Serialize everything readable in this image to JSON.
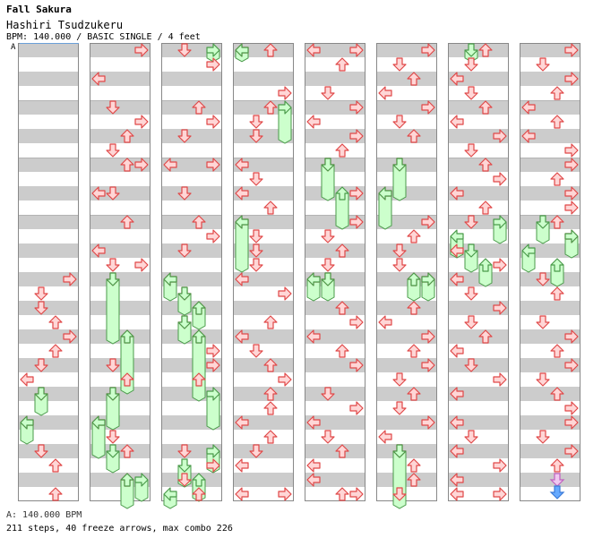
{
  "song": {
    "title": "Fall Sakura",
    "artist": "Hashiri Tsudzukeru",
    "info": "BPM: 140.000 / BASIC SINGLE / 4 feet"
  },
  "marker_label": "A",
  "footer": {
    "bpm_line": "A: 140.000 BPM",
    "stats_line": "211 steps, 40 freeze arrows, max combo 226"
  },
  "colors": {
    "stripe": "#cccccc",
    "border": "#888888",
    "arrow_fill": "#ffd6d6",
    "arrow_stroke": "#e04848",
    "freeze_fill": "#ccffcc",
    "freeze_stroke": "#4a9a4a",
    "shock_fill": "#f0c8f0",
    "shock_blue": "#66aaff"
  },
  "chart_data": {
    "type": "step-chart",
    "columns": 8,
    "measures_per_column": 8,
    "lanes": [
      "left",
      "down",
      "up",
      "right"
    ],
    "events": [
      {
        "c": 0,
        "r": 16,
        "l": 3
      },
      {
        "c": 0,
        "r": 17,
        "l": 1
      },
      {
        "c": 0,
        "r": 18,
        "l": 1
      },
      {
        "c": 0,
        "r": 19,
        "l": 2
      },
      {
        "c": 0,
        "r": 20,
        "l": 3
      },
      {
        "c": 0,
        "r": 21,
        "l": 2
      },
      {
        "c": 0,
        "r": 22,
        "l": 1
      },
      {
        "c": 0,
        "r": 23,
        "l": 0
      },
      {
        "c": 0,
        "r": 24,
        "l": 1
      },
      {
        "c": 0,
        "r": 26,
        "l": 0
      },
      {
        "c": 0,
        "r": 28,
        "l": 1
      },
      {
        "c": 0,
        "r": 29,
        "l": 2
      },
      {
        "c": 0,
        "r": 31,
        "l": 2
      },
      {
        "c": 1,
        "r": 0,
        "l": 3
      },
      {
        "c": 1,
        "r": 2,
        "l": 0
      },
      {
        "c": 1,
        "r": 4,
        "l": 1
      },
      {
        "c": 1,
        "r": 5,
        "l": 3
      },
      {
        "c": 1,
        "r": 6,
        "l": 2
      },
      {
        "c": 1,
        "r": 7,
        "l": 1
      },
      {
        "c": 1,
        "r": 8,
        "l": 2
      },
      {
        "c": 1,
        "r": 8,
        "l": 3
      },
      {
        "c": 1,
        "r": 10,
        "l": 0
      },
      {
        "c": 1,
        "r": 10,
        "l": 1
      },
      {
        "c": 1,
        "r": 12,
        "l": 2
      },
      {
        "c": 1,
        "r": 14,
        "l": 0
      },
      {
        "c": 1,
        "r": 15,
        "l": 1
      },
      {
        "c": 1,
        "r": 15,
        "l": 3
      },
      {
        "c": 1,
        "r": 16,
        "l": 1
      },
      {
        "c": 1,
        "r": 20,
        "l": 2
      },
      {
        "c": 1,
        "r": 22,
        "l": 1
      },
      {
        "c": 1,
        "r": 23,
        "l": 2
      },
      {
        "c": 1,
        "r": 24,
        "l": 1
      },
      {
        "c": 1,
        "r": 26,
        "l": 0
      },
      {
        "c": 1,
        "r": 27,
        "l": 1
      },
      {
        "c": 1,
        "r": 28,
        "l": 2
      },
      {
        "c": 1,
        "r": 30,
        "l": 2
      },
      {
        "c": 2,
        "r": 0,
        "l": 1
      },
      {
        "c": 2,
        "r": 1,
        "l": 3
      },
      {
        "c": 2,
        "r": 4,
        "l": 2
      },
      {
        "c": 2,
        "r": 5,
        "l": 3
      },
      {
        "c": 2,
        "r": 6,
        "l": 1
      },
      {
        "c": 2,
        "r": 8,
        "l": 0
      },
      {
        "c": 2,
        "r": 8,
        "l": 3
      },
      {
        "c": 2,
        "r": 10,
        "l": 1
      },
      {
        "c": 2,
        "r": 12,
        "l": 2
      },
      {
        "c": 2,
        "r": 13,
        "l": 3
      },
      {
        "c": 2,
        "r": 14,
        "l": 1
      },
      {
        "c": 2,
        "r": 16,
        "l": 0
      },
      {
        "c": 2,
        "r": 17,
        "l": 1
      },
      {
        "c": 2,
        "r": 18,
        "l": 2
      },
      {
        "c": 2,
        "r": 19,
        "l": 1
      },
      {
        "c": 2,
        "r": 20,
        "l": 2
      },
      {
        "c": 2,
        "r": 21,
        "l": 3
      },
      {
        "c": 2,
        "r": 22,
        "l": 3
      },
      {
        "c": 2,
        "r": 23,
        "l": 2
      },
      {
        "c": 2,
        "r": 28,
        "l": 1
      },
      {
        "c": 2,
        "r": 29,
        "l": 3
      },
      {
        "c": 2,
        "r": 30,
        "l": 1
      },
      {
        "c": 2,
        "r": 31,
        "l": 2
      },
      {
        "c": 3,
        "r": 0,
        "l": 0
      },
      {
        "c": 3,
        "r": 0,
        "l": 2
      },
      {
        "c": 3,
        "r": 3,
        "l": 3
      },
      {
        "c": 3,
        "r": 4,
        "l": 2
      },
      {
        "c": 3,
        "r": 5,
        "l": 1
      },
      {
        "c": 3,
        "r": 6,
        "l": 1
      },
      {
        "c": 3,
        "r": 8,
        "l": 0
      },
      {
        "c": 3,
        "r": 9,
        "l": 1
      },
      {
        "c": 3,
        "r": 10,
        "l": 0
      },
      {
        "c": 3,
        "r": 11,
        "l": 2
      },
      {
        "c": 3,
        "r": 12,
        "l": 0
      },
      {
        "c": 3,
        "r": 13,
        "l": 1
      },
      {
        "c": 3,
        "r": 14,
        "l": 1
      },
      {
        "c": 3,
        "r": 15,
        "l": 1
      },
      {
        "c": 3,
        "r": 16,
        "l": 0
      },
      {
        "c": 3,
        "r": 17,
        "l": 3
      },
      {
        "c": 3,
        "r": 19,
        "l": 2
      },
      {
        "c": 3,
        "r": 20,
        "l": 0
      },
      {
        "c": 3,
        "r": 21,
        "l": 1
      },
      {
        "c": 3,
        "r": 22,
        "l": 2
      },
      {
        "c": 3,
        "r": 23,
        "l": 3
      },
      {
        "c": 3,
        "r": 24,
        "l": 2
      },
      {
        "c": 3,
        "r": 25,
        "l": 2
      },
      {
        "c": 3,
        "r": 26,
        "l": 0
      },
      {
        "c": 3,
        "r": 27,
        "l": 2
      },
      {
        "c": 3,
        "r": 28,
        "l": 1
      },
      {
        "c": 3,
        "r": 29,
        "l": 0
      },
      {
        "c": 3,
        "r": 31,
        "l": 0
      },
      {
        "c": 3,
        "r": 31,
        "l": 3
      },
      {
        "c": 4,
        "r": 0,
        "l": 0
      },
      {
        "c": 4,
        "r": 0,
        "l": 3
      },
      {
        "c": 4,
        "r": 1,
        "l": 2
      },
      {
        "c": 4,
        "r": 3,
        "l": 1
      },
      {
        "c": 4,
        "r": 4,
        "l": 3
      },
      {
        "c": 4,
        "r": 5,
        "l": 0
      },
      {
        "c": 4,
        "r": 6,
        "l": 3
      },
      {
        "c": 4,
        "r": 7,
        "l": 2
      },
      {
        "c": 4,
        "r": 8,
        "l": 1
      },
      {
        "c": 4,
        "r": 10,
        "l": 3
      },
      {
        "c": 4,
        "r": 12,
        "l": 3
      },
      {
        "c": 4,
        "r": 13,
        "l": 1
      },
      {
        "c": 4,
        "r": 14,
        "l": 2
      },
      {
        "c": 4,
        "r": 15,
        "l": 1
      },
      {
        "c": 4,
        "r": 16,
        "l": 0
      },
      {
        "c": 4,
        "r": 16,
        "l": 1
      },
      {
        "c": 4,
        "r": 18,
        "l": 2
      },
      {
        "c": 4,
        "r": 19,
        "l": 3
      },
      {
        "c": 4,
        "r": 20,
        "l": 0
      },
      {
        "c": 4,
        "r": 21,
        "l": 2
      },
      {
        "c": 4,
        "r": 22,
        "l": 3
      },
      {
        "c": 4,
        "r": 24,
        "l": 1
      },
      {
        "c": 4,
        "r": 25,
        "l": 3
      },
      {
        "c": 4,
        "r": 26,
        "l": 0
      },
      {
        "c": 4,
        "r": 27,
        "l": 1
      },
      {
        "c": 4,
        "r": 28,
        "l": 2
      },
      {
        "c": 4,
        "r": 29,
        "l": 0
      },
      {
        "c": 4,
        "r": 30,
        "l": 0
      },
      {
        "c": 4,
        "r": 31,
        "l": 2
      },
      {
        "c": 4,
        "r": 31,
        "l": 3
      },
      {
        "c": 5,
        "r": 0,
        "l": 3
      },
      {
        "c": 5,
        "r": 1,
        "l": 1
      },
      {
        "c": 5,
        "r": 2,
        "l": 2
      },
      {
        "c": 5,
        "r": 3,
        "l": 0
      },
      {
        "c": 5,
        "r": 4,
        "l": 3
      },
      {
        "c": 5,
        "r": 5,
        "l": 1
      },
      {
        "c": 5,
        "r": 6,
        "l": 2
      },
      {
        "c": 5,
        "r": 8,
        "l": 1
      },
      {
        "c": 5,
        "r": 10,
        "l": 0
      },
      {
        "c": 5,
        "r": 12,
        "l": 3
      },
      {
        "c": 5,
        "r": 13,
        "l": 2
      },
      {
        "c": 5,
        "r": 14,
        "l": 1
      },
      {
        "c": 5,
        "r": 15,
        "l": 1
      },
      {
        "c": 5,
        "r": 16,
        "l": 2
      },
      {
        "c": 5,
        "r": 16,
        "l": 3
      },
      {
        "c": 5,
        "r": 18,
        "l": 2
      },
      {
        "c": 5,
        "r": 19,
        "l": 0
      },
      {
        "c": 5,
        "r": 20,
        "l": 3
      },
      {
        "c": 5,
        "r": 21,
        "l": 2
      },
      {
        "c": 5,
        "r": 22,
        "l": 3
      },
      {
        "c": 5,
        "r": 23,
        "l": 1
      },
      {
        "c": 5,
        "r": 24,
        "l": 2
      },
      {
        "c": 5,
        "r": 25,
        "l": 1
      },
      {
        "c": 5,
        "r": 26,
        "l": 3
      },
      {
        "c": 5,
        "r": 27,
        "l": 0
      },
      {
        "c": 5,
        "r": 28,
        "l": 1
      },
      {
        "c": 5,
        "r": 29,
        "l": 2
      },
      {
        "c": 5,
        "r": 30,
        "l": 2
      },
      {
        "c": 5,
        "r": 31,
        "l": 1
      },
      {
        "c": 6,
        "r": 0,
        "l": 2
      },
      {
        "c": 6,
        "r": 1,
        "l": 1
      },
      {
        "c": 6,
        "r": 2,
        "l": 0
      },
      {
        "c": 6,
        "r": 3,
        "l": 1
      },
      {
        "c": 6,
        "r": 4,
        "l": 2
      },
      {
        "c": 6,
        "r": 5,
        "l": 0
      },
      {
        "c": 6,
        "r": 6,
        "l": 3
      },
      {
        "c": 6,
        "r": 7,
        "l": 1
      },
      {
        "c": 6,
        "r": 8,
        "l": 2
      },
      {
        "c": 6,
        "r": 9,
        "l": 3
      },
      {
        "c": 6,
        "r": 10,
        "l": 0
      },
      {
        "c": 6,
        "r": 11,
        "l": 2
      },
      {
        "c": 6,
        "r": 12,
        "l": 1
      },
      {
        "c": 6,
        "r": 14,
        "l": 0
      },
      {
        "c": 6,
        "r": 15,
        "l": 3
      },
      {
        "c": 6,
        "r": 16,
        "l": 0
      },
      {
        "c": 6,
        "r": 17,
        "l": 1
      },
      {
        "c": 6,
        "r": 18,
        "l": 3
      },
      {
        "c": 6,
        "r": 19,
        "l": 1
      },
      {
        "c": 6,
        "r": 20,
        "l": 2
      },
      {
        "c": 6,
        "r": 21,
        "l": 0
      },
      {
        "c": 6,
        "r": 22,
        "l": 1
      },
      {
        "c": 6,
        "r": 23,
        "l": 3
      },
      {
        "c": 6,
        "r": 24,
        "l": 0
      },
      {
        "c": 6,
        "r": 26,
        "l": 0
      },
      {
        "c": 6,
        "r": 27,
        "l": 1
      },
      {
        "c": 6,
        "r": 28,
        "l": 0
      },
      {
        "c": 6,
        "r": 29,
        "l": 3
      },
      {
        "c": 6,
        "r": 30,
        "l": 0
      },
      {
        "c": 6,
        "r": 31,
        "l": 0
      },
      {
        "c": 6,
        "r": 31,
        "l": 3
      },
      {
        "c": 7,
        "r": 0,
        "l": 3
      },
      {
        "c": 7,
        "r": 1,
        "l": 1
      },
      {
        "c": 7,
        "r": 2,
        "l": 3
      },
      {
        "c": 7,
        "r": 3,
        "l": 2
      },
      {
        "c": 7,
        "r": 4,
        "l": 0
      },
      {
        "c": 7,
        "r": 5,
        "l": 2
      },
      {
        "c": 7,
        "r": 6,
        "l": 0
      },
      {
        "c": 7,
        "r": 7,
        "l": 3
      },
      {
        "c": 7,
        "r": 8,
        "l": 3
      },
      {
        "c": 7,
        "r": 9,
        "l": 2
      },
      {
        "c": 7,
        "r": 10,
        "l": 3
      },
      {
        "c": 7,
        "r": 11,
        "l": 3
      },
      {
        "c": 7,
        "r": 12,
        "l": 2
      },
      {
        "c": 7,
        "r": 13,
        "l": 3
      },
      {
        "c": 7,
        "r": 16,
        "l": 1
      },
      {
        "c": 7,
        "r": 17,
        "l": 2
      },
      {
        "c": 7,
        "r": 19,
        "l": 1
      },
      {
        "c": 7,
        "r": 20,
        "l": 3
      },
      {
        "c": 7,
        "r": 21,
        "l": 2
      },
      {
        "c": 7,
        "r": 22,
        "l": 3
      },
      {
        "c": 7,
        "r": 23,
        "l": 1
      },
      {
        "c": 7,
        "r": 24,
        "l": 2
      },
      {
        "c": 7,
        "r": 25,
        "l": 3
      },
      {
        "c": 7,
        "r": 26,
        "l": 3
      },
      {
        "c": 7,
        "r": 27,
        "l": 1
      },
      {
        "c": 7,
        "r": 28,
        "l": 3
      },
      {
        "c": 7,
        "r": 29,
        "l": 2
      }
    ],
    "freezes": [
      {
        "c": 0,
        "l": 1,
        "r0": 24,
        "r1": 25.5
      },
      {
        "c": 0,
        "l": 0,
        "r0": 26,
        "r1": 27.5
      },
      {
        "c": 1,
        "l": 1,
        "r0": 16,
        "r1": 20.5
      },
      {
        "c": 1,
        "l": 2,
        "r0": 20,
        "r1": 24
      },
      {
        "c": 1,
        "l": 1,
        "r0": 24,
        "r1": 26.5
      },
      {
        "c": 1,
        "l": 0,
        "r0": 26,
        "r1": 28.5
      },
      {
        "c": 1,
        "l": 1,
        "r0": 28,
        "r1": 29.5
      },
      {
        "c": 1,
        "l": 2,
        "r0": 30,
        "r1": 32
      },
      {
        "c": 1,
        "l": 3,
        "r0": 30,
        "r1": 31.5
      },
      {
        "c": 2,
        "l": 3,
        "r0": 0,
        "r1": 0.8
      },
      {
        "c": 2,
        "l": 0,
        "r0": 16,
        "r1": 17.5
      },
      {
        "c": 2,
        "l": 1,
        "r0": 17,
        "r1": 18.5
      },
      {
        "c": 2,
        "l": 2,
        "r0": 18,
        "r1": 19.5
      },
      {
        "c": 2,
        "l": 1,
        "r0": 19,
        "r1": 20.5
      },
      {
        "c": 2,
        "l": 2,
        "r0": 20,
        "r1": 24.5
      },
      {
        "c": 2,
        "l": 3,
        "r0": 24,
        "r1": 26.5
      },
      {
        "c": 2,
        "l": 3,
        "r0": 28,
        "r1": 29.5
      },
      {
        "c": 2,
        "l": 1,
        "r0": 29,
        "r1": 30.5
      },
      {
        "c": 2,
        "l": 2,
        "r0": 30,
        "r1": 31.5
      },
      {
        "c": 2,
        "l": 0,
        "r0": 31,
        "r1": 32
      },
      {
        "c": 3,
        "l": 0,
        "r0": 0,
        "r1": 0.8
      },
      {
        "c": 3,
        "l": 3,
        "r0": 4,
        "r1": 6.5
      },
      {
        "c": 3,
        "l": 0,
        "r0": 12,
        "r1": 15.5
      },
      {
        "c": 4,
        "l": 1,
        "r0": 8,
        "r1": 10.5
      },
      {
        "c": 4,
        "l": 2,
        "r0": 10,
        "r1": 12.5
      },
      {
        "c": 4,
        "l": 0,
        "r0": 16,
        "r1": 17.5
      },
      {
        "c": 4,
        "l": 1,
        "r0": 16,
        "r1": 17.5
      },
      {
        "c": 5,
        "l": 1,
        "r0": 8,
        "r1": 10.5
      },
      {
        "c": 5,
        "l": 0,
        "r0": 10,
        "r1": 12.5
      },
      {
        "c": 5,
        "l": 2,
        "r0": 16,
        "r1": 17.5
      },
      {
        "c": 5,
        "l": 3,
        "r0": 16,
        "r1": 17.5
      },
      {
        "c": 5,
        "l": 1,
        "r0": 28,
        "r1": 32
      },
      {
        "c": 6,
        "l": 1,
        "r0": 0,
        "r1": 0.8
      },
      {
        "c": 6,
        "l": 3,
        "r0": 12,
        "r1": 13.5
      },
      {
        "c": 6,
        "l": 0,
        "r0": 13,
        "r1": 14.5
      },
      {
        "c": 6,
        "l": 1,
        "r0": 14,
        "r1": 15.5
      },
      {
        "c": 6,
        "l": 2,
        "r0": 15,
        "r1": 16.5
      },
      {
        "c": 7,
        "l": 1,
        "r0": 12,
        "r1": 13.5
      },
      {
        "c": 7,
        "l": 3,
        "r0": 13,
        "r1": 14.5
      },
      {
        "c": 7,
        "l": 0,
        "r0": 14,
        "r1": 15.5
      },
      {
        "c": 7,
        "l": 2,
        "r0": 15,
        "r1": 16.5
      }
    ],
    "shock": {
      "c": 7,
      "r": 30,
      "l": 2
    }
  }
}
